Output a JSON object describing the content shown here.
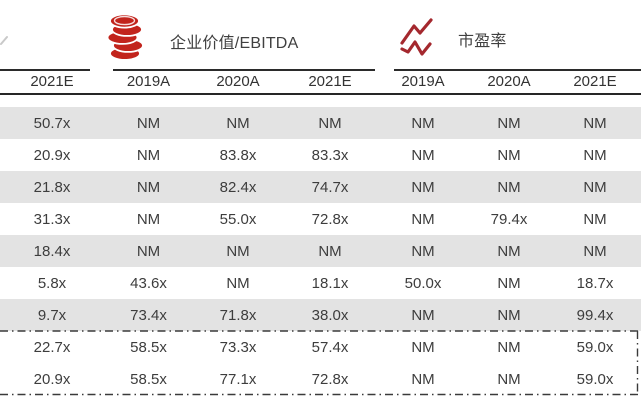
{
  "legend": {
    "ev_ebitda_label": "企业价值/EBITDA",
    "pe_label": "市盈率"
  },
  "colors": {
    "coin_icon_red": "#c2241c",
    "trend_icon_red": "#a4282e",
    "stripe_gray": "#e3e3e3",
    "text_dark": "#3d3d3d",
    "rule_dark": "#262626"
  },
  "table": {
    "column_headers": [
      "2021E",
      "2019A",
      "2020A",
      "2021E",
      "2019A",
      "2020A",
      "2021E"
    ],
    "rows": [
      [
        "50.7x",
        "NM",
        "NM",
        "NM",
        "NM",
        "NM",
        "NM"
      ],
      [
        "20.9x",
        "NM",
        "83.8x",
        "83.3x",
        "NM",
        "NM",
        "NM"
      ],
      [
        "21.8x",
        "NM",
        "82.4x",
        "74.7x",
        "NM",
        "NM",
        "NM"
      ],
      [
        "31.3x",
        "NM",
        "55.0x",
        "72.8x",
        "NM",
        "79.4x",
        "NM"
      ],
      [
        "18.4x",
        "NM",
        "NM",
        "NM",
        "NM",
        "NM",
        "NM"
      ],
      [
        "5.8x",
        "43.6x",
        "NM",
        "18.1x",
        "50.0x",
        "NM",
        "18.7x"
      ],
      [
        "9.7x",
        "73.4x",
        "71.8x",
        "38.0x",
        "NM",
        "NM",
        "99.4x"
      ],
      [
        "22.7x",
        "58.5x",
        "73.3x",
        "57.4x",
        "NM",
        "NM",
        "59.0x"
      ],
      [
        "20.9x",
        "58.5x",
        "77.1x",
        "72.8x",
        "NM",
        "NM",
        "59.0x"
      ]
    ],
    "striped_row_indices": [
      0,
      2,
      4,
      6
    ],
    "boxed_row_indices": [
      7,
      8
    ]
  }
}
